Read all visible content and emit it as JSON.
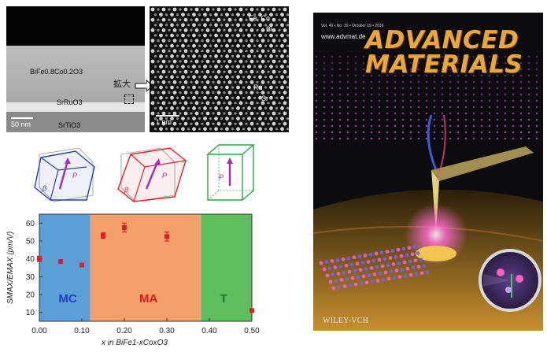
{
  "tem": {
    "film_label": "BiFe0.8Co0.2O3",
    "electrode_label": "SrRuO3",
    "substrate_label": "SrTiO3",
    "scale_left": "50 nm",
    "zoom_label": "拡大",
    "site_top": "Fe, Co",
    "site_top2": "Bi",
    "site_bottom": "Ru",
    "site_bottom2": "Sr",
    "scale_right": "1 nm"
  },
  "unit_cells": {
    "left": {
      "angle": "β",
      "vector": "P",
      "color": "#2a3fb0"
    },
    "middle": {
      "angle": "β",
      "vector": "P",
      "color": "#e0222a"
    },
    "right": {
      "angle": "",
      "vector": "P",
      "color": "#2aa848"
    }
  },
  "chart_data": {
    "type": "scatter",
    "title": "",
    "xlabel": "x in BiFe1-xCoxO3",
    "ylabel": "SMAX/EMAX (pm/V)",
    "xlim": [
      0.0,
      0.5
    ],
    "ylim": [
      5,
      65
    ],
    "xticks": [
      "0.00",
      "0.10",
      "0.20",
      "0.30",
      "0.40",
      "0.50"
    ],
    "yticks": [
      "10",
      "20",
      "30",
      "40",
      "50",
      "60"
    ],
    "points": [
      {
        "x": 0.0,
        "y": 40,
        "err": 1.5
      },
      {
        "x": 0.05,
        "y": 38.5,
        "err": 1.0
      },
      {
        "x": 0.1,
        "y": 36.5,
        "err": 0.8
      },
      {
        "x": 0.15,
        "y": 53,
        "err": 1.5
      },
      {
        "x": 0.2,
        "y": 57.5,
        "err": 2.5
      },
      {
        "x": 0.3,
        "y": 52.5,
        "err": 2.5
      },
      {
        "x": 0.5,
        "y": 11,
        "err": 0.5
      }
    ],
    "regions": [
      {
        "label": "MC",
        "from": 0.0,
        "to": 0.12,
        "color": "#5b9fd9"
      },
      {
        "label": "MA",
        "from": 0.12,
        "to": 0.38,
        "color": "#f4a06a"
      },
      {
        "label": "T",
        "from": 0.38,
        "to": 0.5,
        "color": "#5cbf5c"
      }
    ],
    "marker_color": "#e02020",
    "grid": false
  },
  "cover": {
    "title_line1": "ADVANCED",
    "title_line2": "MATERIALS",
    "url": "www.advmat.de",
    "volume": "Vol. 46 • No. 39 • October 19 • 2016",
    "publisher": "WILEY-VCH"
  }
}
